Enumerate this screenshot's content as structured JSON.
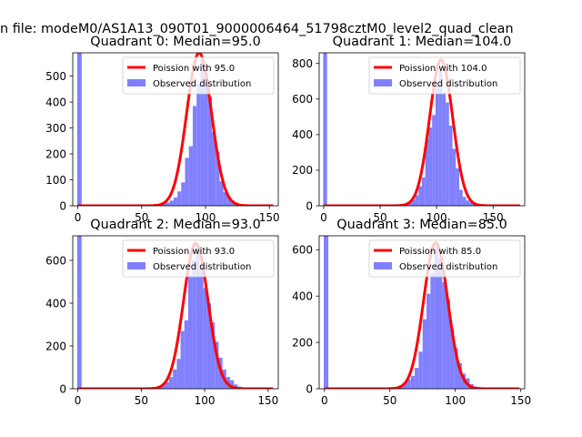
{
  "figure": {
    "suptitle": "n file: modeM0/AS1A13_090T01_9000006464_51798cztM0_level2_quad_clean"
  },
  "colors": {
    "histogram": "#8080ff",
    "poisson": "#ff0000"
  },
  "chart_data": [
    {
      "type": "bar",
      "title": "Quadrant 0: Median=95.0",
      "median": 95.0,
      "legend": [
        "Poission with 95.0",
        "Observed distribution"
      ],
      "legend_position": "upper right",
      "xlim": [
        -4,
        157
      ],
      "ylim": [
        0,
        590
      ],
      "xticks": [
        0,
        50,
        100,
        150
      ],
      "yticks": [
        0,
        100,
        200,
        300,
        400,
        500
      ],
      "spike": {
        "x": 0,
        "value": 590
      },
      "hist_start": 63,
      "bin_width": 3,
      "hist_values": [
        5,
        8,
        12,
        20,
        32,
        55,
        90,
        185,
        230,
        385,
        470,
        570,
        495,
        420,
        285,
        210,
        95,
        52,
        35,
        20,
        12,
        6
      ],
      "line_amplitude": 590
    },
    {
      "type": "bar",
      "title": "Quadrant 1: Median=104.0",
      "median": 104.0,
      "legend": [
        "Poission with 104.0",
        "Observed distribution"
      ],
      "legend_position": "upper right",
      "xlim": [
        -4,
        178
      ],
      "ylim": [
        0,
        860
      ],
      "xticks": [
        0,
        50,
        100,
        150
      ],
      "yticks": [
        0,
        200,
        400,
        600,
        800
      ],
      "spike": {
        "x": 0,
        "value": 860
      },
      "hist_start": 72,
      "bin_width": 3,
      "hist_values": [
        12,
        20,
        35,
        60,
        110,
        160,
        375,
        440,
        510,
        680,
        760,
        640,
        580,
        450,
        320,
        210,
        90,
        50,
        30,
        20,
        10,
        5
      ],
      "line_amplitude": 820
    },
    {
      "type": "bar",
      "title": "Quadrant 2: Median=93.0",
      "median": 93.0,
      "legend": [
        "Poission with 93.0",
        "Observed distribution"
      ],
      "legend_position": "upper right",
      "xlim": [
        -4,
        158
      ],
      "ylim": [
        0,
        715
      ],
      "xticks": [
        0,
        50,
        100,
        150
      ],
      "yticks": [
        0,
        200,
        400,
        600
      ],
      "spike": {
        "x": 0,
        "value": 715
      },
      "hist_start": 63,
      "bin_width": 3,
      "hist_values": [
        8,
        20,
        30,
        55,
        90,
        140,
        270,
        320,
        530,
        600,
        670,
        565,
        470,
        400,
        310,
        220,
        145,
        90,
        55,
        40,
        20,
        10
      ],
      "line_amplitude": 680
    },
    {
      "type": "bar",
      "title": "Quadrant 3: Median=85.0",
      "median": 85.0,
      "legend": [
        "Poission with 85.0",
        "Observed distribution"
      ],
      "legend_position": "upper right",
      "xlim": [
        -4,
        153
      ],
      "ylim": [
        0,
        660
      ],
      "xticks": [
        0,
        50,
        100,
        150
      ],
      "yticks": [
        0,
        200,
        400,
        600
      ],
      "spike": {
        "x": 0,
        "value": 660
      },
      "hist_start": 54,
      "bin_width": 3,
      "hist_values": [
        8,
        15,
        25,
        40,
        55,
        90,
        160,
        300,
        410,
        500,
        615,
        565,
        460,
        385,
        260,
        175,
        110,
        65,
        45,
        20,
        10,
        5
      ],
      "line_amplitude": 630
    }
  ]
}
